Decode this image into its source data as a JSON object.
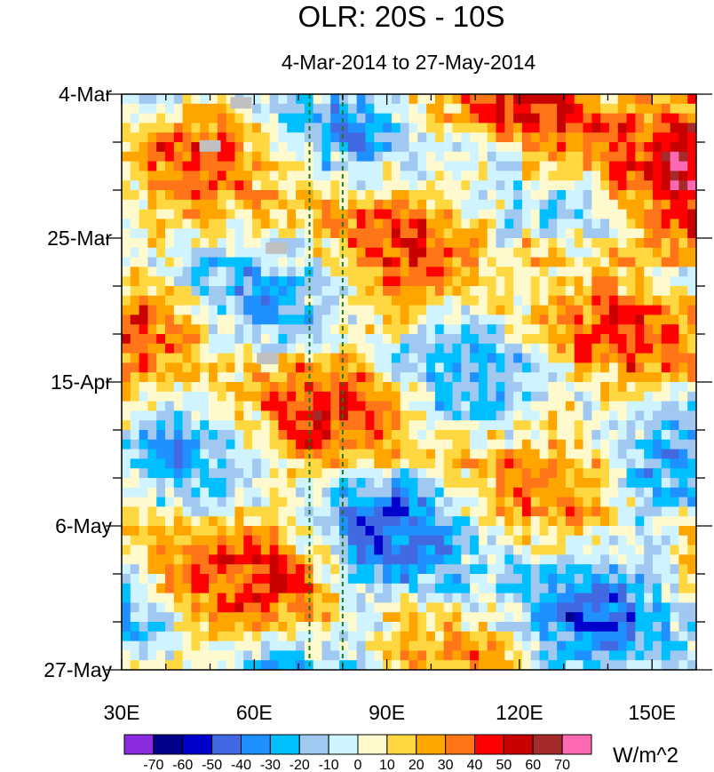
{
  "chart_data": {
    "type": "heatmap",
    "title": "OLR: 20S - 10S",
    "subtitle": "4-Mar-2014 to 27-May-2014",
    "x_ticks": [
      "30E",
      "60E",
      "90E",
      "120E",
      "150E"
    ],
    "x_tick_values": [
      30,
      60,
      90,
      120,
      150
    ],
    "xlim": [
      30,
      160
    ],
    "y_ticks": [
      "4-Mar",
      "25-Mar",
      "15-Apr",
      "6-May",
      "27-May"
    ],
    "y_tick_values": [
      0,
      21,
      42,
      63,
      84
    ],
    "ylim": [
      0,
      84
    ],
    "reference_lines_lon": [
      72.5,
      80
    ],
    "colorbar": {
      "levels": [
        -70,
        -60,
        -50,
        -40,
        -30,
        -20,
        -10,
        0,
        10,
        20,
        30,
        40,
        50,
        60,
        70
      ],
      "level_labels": [
        "-70",
        "-60",
        "-50",
        "-40",
        "-30",
        "-20",
        "-10",
        "0",
        "10",
        "20",
        "30",
        "40",
        "50",
        "60",
        "70"
      ],
      "colors": [
        "#8a2be2",
        "#00008b",
        "#0000cd",
        "#4169e1",
        "#1e90ff",
        "#00bfff",
        "#a0c8f0",
        "#d0f4ff",
        "#fffacd",
        "#ffd740",
        "#ffa500",
        "#ff7518",
        "#ff0000",
        "#c80000",
        "#a52a2a",
        "#ff69b4"
      ],
      "unit": "W/m^2"
    },
    "missing_color": "#c0c0c0"
  }
}
